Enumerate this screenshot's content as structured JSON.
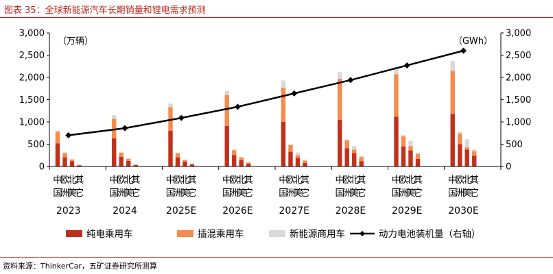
{
  "figure_title": "图表 35：全球新能源汽车长期销量和锂电需求预测",
  "source_note": "资料来源：ThinkerCar，五矿证券研究所测算",
  "colors": {
    "bev": "#c0311c",
    "phev": "#f58b4c",
    "commercial": "#d9d9d9",
    "battery_line": "#000000",
    "accent": "#b5261e"
  },
  "chart_data": {
    "type": "bar",
    "subtype": "stacked-bar-with-line",
    "title": "图表 35：全球新能源汽车长期销量和锂电需求预测",
    "y_left_unit": "（万辆）",
    "y_right_unit": "（GWh）",
    "y_left_range": [
      0,
      3000
    ],
    "y_right_range": [
      0,
      3000
    ],
    "y_ticks": [
      "0",
      "500",
      "1,000",
      "1,500",
      "2,000",
      "2,500",
      "3,000"
    ],
    "y_tick_values": [
      0,
      500,
      1000,
      1500,
      2000,
      2500,
      3000
    ],
    "regions": [
      "中国",
      "欧洲",
      "北美",
      "其它"
    ],
    "region_row1": [
      "中",
      "欧",
      "北",
      "其"
    ],
    "region_row2": [
      "国",
      "洲",
      "美",
      "它"
    ],
    "years": [
      "2023",
      "2024",
      "2025E",
      "2026E",
      "2027E",
      "2028E",
      "2029E",
      "2030E"
    ],
    "grid": false,
    "legend_position": "bottom",
    "series": [
      {
        "name": "纯电乘用车",
        "values": [
          [
            520,
            205,
            115,
            25
          ],
          [
            630,
            220,
            125,
            30
          ],
          [
            800,
            205,
            110,
            45
          ],
          [
            910,
            255,
            140,
            60
          ],
          [
            1000,
            330,
            190,
            80
          ],
          [
            1050,
            410,
            300,
            120
          ],
          [
            1120,
            450,
            360,
            170
          ],
          [
            1180,
            500,
            380,
            240
          ]
        ]
      },
      {
        "name": "插混乘用车",
        "values": [
          [
            260,
            95,
            40,
            10
          ],
          [
            440,
            90,
            45,
            10
          ],
          [
            530,
            90,
            35,
            12
          ],
          [
            690,
            110,
            60,
            25
          ],
          [
            770,
            150,
            65,
            50
          ],
          [
            920,
            175,
            80,
            90
          ],
          [
            950,
            225,
            95,
            110
          ],
          [
            970,
            240,
            50,
            100
          ]
        ]
      },
      {
        "name": "新能源商用车",
        "values": [
          [
            30,
            15,
            10,
            5
          ],
          [
            80,
            10,
            10,
            8
          ],
          [
            80,
            15,
            10,
            8
          ],
          [
            100,
            15,
            15,
            10
          ],
          [
            160,
            20,
            60,
            25
          ],
          [
            150,
            20,
            80,
            30
          ],
          [
            170,
            30,
            120,
            30
          ],
          [
            220,
            40,
            180,
            40
          ]
        ]
      }
    ],
    "line_series": {
      "name": "动力电池装机量（右轴）",
      "axis": "right",
      "values": [
        700,
        860,
        1090,
        1340,
        1640,
        1940,
        2270,
        2600
      ]
    }
  }
}
